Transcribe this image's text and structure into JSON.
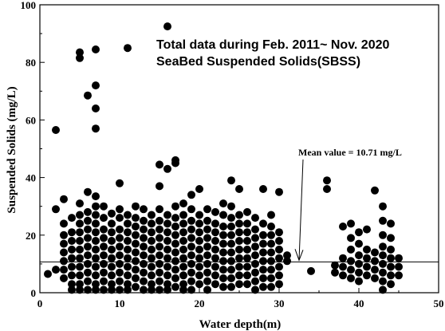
{
  "chart_data": {
    "type": "scatter",
    "title_lines": [
      "Total data during Feb. 2011~ Nov. 2020",
      "SeaBed Suspended Solids(SBSS)"
    ],
    "xlabel": "Water depth(m)",
    "ylabel": "Suspended Solids (mg/L)",
    "xlim": [
      0,
      50
    ],
    "ylim": [
      0,
      100
    ],
    "xticks": [
      0,
      10,
      20,
      30,
      40,
      50
    ],
    "yticks": [
      0,
      20,
      40,
      60,
      80,
      100
    ],
    "grid": false,
    "mean_line": {
      "value": 10.71,
      "label": "Mean value = 10.71 mg/L"
    },
    "points": [
      [
        1,
        6.5
      ],
      [
        2,
        56.5
      ],
      [
        2,
        29
      ],
      [
        2,
        8
      ],
      [
        3,
        32.5
      ],
      [
        3,
        24
      ],
      [
        3,
        20
      ],
      [
        3,
        17
      ],
      [
        3,
        14
      ],
      [
        3,
        11
      ],
      [
        3,
        8
      ],
      [
        3,
        5
      ],
      [
        4,
        26
      ],
      [
        4,
        21
      ],
      [
        4,
        18
      ],
      [
        4,
        15
      ],
      [
        4,
        12
      ],
      [
        4,
        9
      ],
      [
        4,
        6
      ],
      [
        4,
        3
      ],
      [
        4,
        1
      ],
      [
        5,
        83.5
      ],
      [
        5,
        81.5
      ],
      [
        5,
        31
      ],
      [
        5,
        27
      ],
      [
        5,
        24
      ],
      [
        5,
        21
      ],
      [
        5,
        18
      ],
      [
        5,
        15
      ],
      [
        5,
        12
      ],
      [
        5,
        9
      ],
      [
        5,
        6
      ],
      [
        5,
        3
      ],
      [
        5,
        1
      ],
      [
        6,
        68.5
      ],
      [
        6,
        35
      ],
      [
        6,
        28
      ],
      [
        6,
        25
      ],
      [
        6,
        22
      ],
      [
        6,
        19
      ],
      [
        6,
        16
      ],
      [
        6,
        13
      ],
      [
        6,
        10
      ],
      [
        6,
        7
      ],
      [
        6,
        4
      ],
      [
        6,
        1
      ],
      [
        7,
        84.5
      ],
      [
        7,
        72
      ],
      [
        7,
        64
      ],
      [
        7,
        57
      ],
      [
        7,
        33.5
      ],
      [
        7,
        30
      ],
      [
        7,
        27
      ],
      [
        7,
        24
      ],
      [
        7,
        21
      ],
      [
        7,
        18
      ],
      [
        7,
        15
      ],
      [
        7,
        12
      ],
      [
        7,
        9
      ],
      [
        7,
        6
      ],
      [
        7,
        3
      ],
      [
        7,
        1
      ],
      [
        8,
        30
      ],
      [
        8,
        26
      ],
      [
        8,
        22
      ],
      [
        8,
        19
      ],
      [
        8,
        16
      ],
      [
        8,
        13
      ],
      [
        8,
        10
      ],
      [
        8,
        7
      ],
      [
        8,
        4
      ],
      [
        8,
        1
      ],
      [
        9,
        27.5
      ],
      [
        9,
        24
      ],
      [
        9,
        21
      ],
      [
        9,
        18
      ],
      [
        9,
        15
      ],
      [
        9,
        12
      ],
      [
        9,
        9
      ],
      [
        9,
        6
      ],
      [
        9,
        3
      ],
      [
        9,
        1
      ],
      [
        10,
        38
      ],
      [
        10,
        29
      ],
      [
        10,
        26
      ],
      [
        10,
        22
      ],
      [
        10,
        19
      ],
      [
        10,
        16
      ],
      [
        10,
        13
      ],
      [
        10,
        10
      ],
      [
        10,
        7
      ],
      [
        10,
        4
      ],
      [
        10,
        1
      ],
      [
        11,
        85
      ],
      [
        11,
        27
      ],
      [
        11,
        24
      ],
      [
        11,
        21
      ],
      [
        11,
        18
      ],
      [
        11,
        15
      ],
      [
        11,
        12
      ],
      [
        11,
        9
      ],
      [
        11,
        6
      ],
      [
        11,
        3
      ],
      [
        11,
        1
      ],
      [
        12,
        30
      ],
      [
        12,
        26
      ],
      [
        12,
        23
      ],
      [
        12,
        20
      ],
      [
        12,
        17
      ],
      [
        12,
        14
      ],
      [
        12,
        11
      ],
      [
        12,
        8
      ],
      [
        12,
        5
      ],
      [
        12,
        2
      ],
      [
        13,
        29
      ],
      [
        13,
        25
      ],
      [
        13,
        22
      ],
      [
        13,
        19
      ],
      [
        13,
        16
      ],
      [
        13,
        13
      ],
      [
        13,
        10
      ],
      [
        13,
        7
      ],
      [
        13,
        4
      ],
      [
        13,
        1
      ],
      [
        14,
        27
      ],
      [
        14,
        24
      ],
      [
        14,
        21
      ],
      [
        14,
        18
      ],
      [
        14,
        15
      ],
      [
        14,
        12
      ],
      [
        14,
        9
      ],
      [
        14,
        6
      ],
      [
        14,
        3
      ],
      [
        14,
        1
      ],
      [
        15,
        44.5
      ],
      [
        15,
        37
      ],
      [
        15,
        29
      ],
      [
        15,
        25
      ],
      [
        15,
        22
      ],
      [
        15,
        19
      ],
      [
        15,
        16
      ],
      [
        15,
        13
      ],
      [
        15,
        10
      ],
      [
        15,
        7
      ],
      [
        15,
        4
      ],
      [
        15,
        1
      ],
      [
        16,
        92.5
      ],
      [
        16,
        43
      ],
      [
        16,
        27
      ],
      [
        16,
        24
      ],
      [
        16,
        21
      ],
      [
        16,
        18
      ],
      [
        16,
        15
      ],
      [
        16,
        12
      ],
      [
        16,
        9
      ],
      [
        16,
        6
      ],
      [
        16,
        3
      ],
      [
        16,
        1
      ],
      [
        17,
        46
      ],
      [
        17,
        45
      ],
      [
        17,
        30
      ],
      [
        17,
        26
      ],
      [
        17,
        23
      ],
      [
        17,
        20
      ],
      [
        17,
        17
      ],
      [
        17,
        14
      ],
      [
        17,
        11
      ],
      [
        17,
        8
      ],
      [
        17,
        5
      ],
      [
        17,
        2
      ],
      [
        18,
        31
      ],
      [
        18,
        27
      ],
      [
        18,
        24
      ],
      [
        18,
        21
      ],
      [
        18,
        18
      ],
      [
        18,
        15
      ],
      [
        18,
        12
      ],
      [
        18,
        9
      ],
      [
        18,
        6
      ],
      [
        18,
        3
      ],
      [
        18,
        1
      ],
      [
        19,
        34
      ],
      [
        19,
        29
      ],
      [
        19,
        25
      ],
      [
        19,
        22
      ],
      [
        19,
        19
      ],
      [
        19,
        16
      ],
      [
        19,
        13
      ],
      [
        19,
        10
      ],
      [
        19,
        7
      ],
      [
        19,
        4
      ],
      [
        19,
        1
      ],
      [
        20,
        36
      ],
      [
        20,
        27
      ],
      [
        20,
        24
      ],
      [
        20,
        21
      ],
      [
        20,
        18
      ],
      [
        20,
        15
      ],
      [
        20,
        12
      ],
      [
        20,
        9
      ],
      [
        20,
        6
      ],
      [
        20,
        3
      ],
      [
        21,
        29
      ],
      [
        21,
        25
      ],
      [
        21,
        22
      ],
      [
        21,
        19
      ],
      [
        21,
        16
      ],
      [
        21,
        13
      ],
      [
        21,
        10
      ],
      [
        21,
        7
      ],
      [
        21,
        4
      ],
      [
        21,
        1
      ],
      [
        22,
        28
      ],
      [
        22,
        24
      ],
      [
        22,
        21
      ],
      [
        22,
        18
      ],
      [
        22,
        15
      ],
      [
        22,
        12
      ],
      [
        22,
        9
      ],
      [
        22,
        6
      ],
      [
        22,
        3
      ],
      [
        23,
        31
      ],
      [
        23,
        27
      ],
      [
        23,
        23
      ],
      [
        23,
        20
      ],
      [
        23,
        17
      ],
      [
        23,
        14
      ],
      [
        23,
        11
      ],
      [
        23,
        8
      ],
      [
        23,
        5
      ],
      [
        23,
        2
      ],
      [
        24,
        39
      ],
      [
        24,
        30
      ],
      [
        24,
        26
      ],
      [
        24,
        23
      ],
      [
        24,
        20
      ],
      [
        24,
        17
      ],
      [
        24,
        14
      ],
      [
        24,
        11
      ],
      [
        24,
        8
      ],
      [
        24,
        5
      ],
      [
        24,
        2
      ],
      [
        25,
        36
      ],
      [
        25,
        27
      ],
      [
        25,
        24
      ],
      [
        25,
        21
      ],
      [
        25,
        18
      ],
      [
        25,
        15
      ],
      [
        25,
        12
      ],
      [
        25,
        9
      ],
      [
        25,
        6
      ],
      [
        25,
        3
      ],
      [
        26,
        28
      ],
      [
        26,
        24
      ],
      [
        26,
        21
      ],
      [
        26,
        18
      ],
      [
        26,
        15
      ],
      [
        26,
        12
      ],
      [
        26,
        9
      ],
      [
        26,
        6
      ],
      [
        26,
        3
      ],
      [
        27,
        26
      ],
      [
        27,
        22
      ],
      [
        27,
        19
      ],
      [
        27,
        16
      ],
      [
        27,
        13
      ],
      [
        27,
        10
      ],
      [
        27,
        7
      ],
      [
        27,
        4
      ],
      [
        27,
        1
      ],
      [
        28,
        36
      ],
      [
        28,
        24
      ],
      [
        28,
        20
      ],
      [
        28,
        17
      ],
      [
        28,
        14
      ],
      [
        28,
        11
      ],
      [
        28,
        8
      ],
      [
        28,
        5
      ],
      [
        28,
        2
      ],
      [
        29,
        27
      ],
      [
        29,
        23
      ],
      [
        29,
        20
      ],
      [
        29,
        17
      ],
      [
        29,
        14
      ],
      [
        29,
        11
      ],
      [
        29,
        8
      ],
      [
        29,
        5
      ],
      [
        29,
        2
      ],
      [
        30,
        35
      ],
      [
        30,
        21
      ],
      [
        30,
        18
      ],
      [
        30,
        15
      ],
      [
        30,
        12
      ],
      [
        30,
        9
      ],
      [
        30,
        6
      ],
      [
        30,
        3
      ],
      [
        31,
        11
      ],
      [
        31,
        13
      ],
      [
        34,
        7.5
      ],
      [
        36,
        39
      ],
      [
        36,
        36
      ],
      [
        37,
        9.5
      ],
      [
        37,
        7
      ],
      [
        38,
        23
      ],
      [
        38,
        12
      ],
      [
        38,
        9
      ],
      [
        38,
        6
      ],
      [
        39,
        24
      ],
      [
        39,
        19
      ],
      [
        39,
        15
      ],
      [
        39,
        11
      ],
      [
        39,
        8
      ],
      [
        39,
        5
      ],
      [
        40,
        21
      ],
      [
        40,
        17
      ],
      [
        40,
        13
      ],
      [
        40,
        10
      ],
      [
        40,
        7
      ],
      [
        40,
        4
      ],
      [
        41,
        22
      ],
      [
        41,
        15
      ],
      [
        41,
        12
      ],
      [
        41,
        9
      ],
      [
        41,
        6
      ],
      [
        42,
        35.5
      ],
      [
        42,
        14
      ],
      [
        42,
        11
      ],
      [
        42,
        8
      ],
      [
        42,
        5
      ],
      [
        43,
        30
      ],
      [
        43,
        25
      ],
      [
        43,
        20
      ],
      [
        43,
        16
      ],
      [
        43,
        13
      ],
      [
        43,
        10
      ],
      [
        43,
        7
      ],
      [
        43,
        4
      ],
      [
        43,
        1
      ],
      [
        44,
        24
      ],
      [
        44,
        19
      ],
      [
        44,
        15
      ],
      [
        44,
        12
      ],
      [
        44,
        9
      ],
      [
        44,
        6
      ],
      [
        44,
        3
      ],
      [
        45,
        12
      ],
      [
        45,
        9
      ],
      [
        45,
        6
      ]
    ]
  }
}
